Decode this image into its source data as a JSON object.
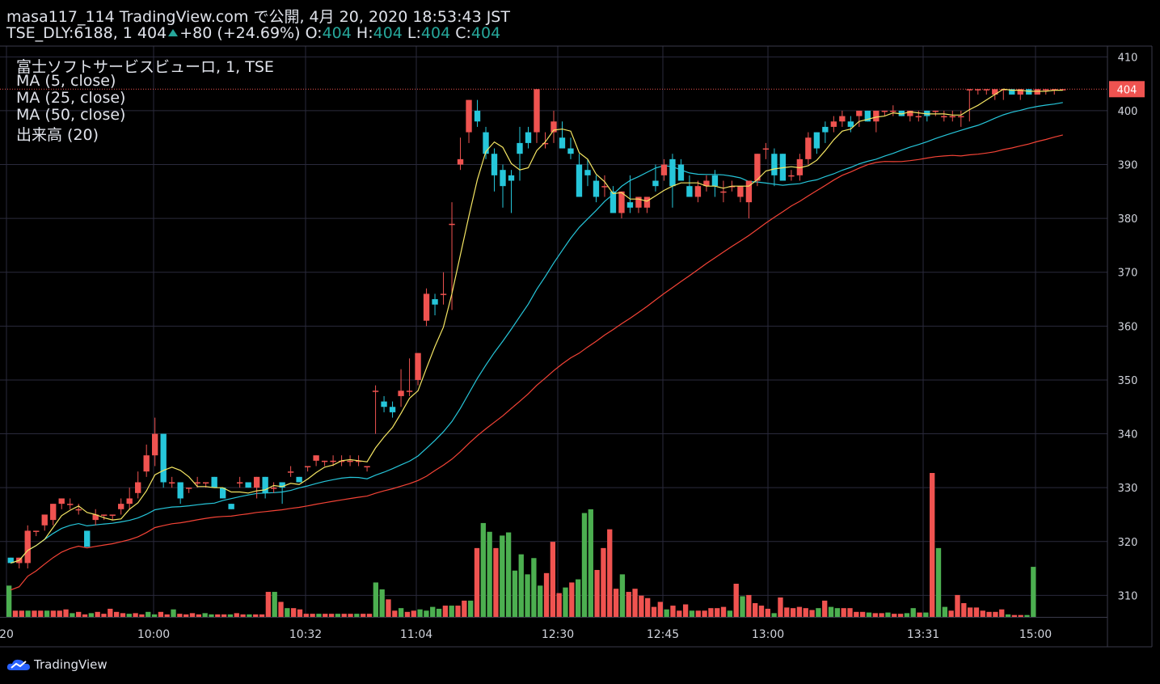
{
  "header": {
    "published": "masa117_114 TradingView.com で公開, 4月 20, 2020 18:53:43 JST",
    "symbol": "TSE_DLY:6188, 1",
    "price": "404",
    "change": "+80 (+24.69%)",
    "o_label": "O:",
    "o_value": "404",
    "h_label": "H:",
    "h_value": "404",
    "l_label": "L:",
    "l_value": "404",
    "c_label": "C:",
    "c_value": "404"
  },
  "legend": {
    "title": "富士ソフトサービスビューロ, 1, TSE",
    "ma5": "MA (5, close)",
    "ma25": "MA (25, close)",
    "ma50": "MA (50, close)",
    "volume": "出来高 (20)"
  },
  "footer": {
    "brand": "TradingView"
  },
  "colors": {
    "up": "#ef5350",
    "down": "#26c6da",
    "vol_up": "#ef5350",
    "vol_down": "#4caf50",
    "ma5": "#f5e663",
    "ma25": "#26c6da",
    "ma50": "#f44336",
    "grid": "#2a2a3c",
    "price_line": "#ef5350"
  },
  "chart_data": {
    "type": "candlestick",
    "ylim": [
      306,
      412
    ],
    "y_ticks": [
      310,
      320,
      330,
      340,
      350,
      360,
      370,
      380,
      390,
      400,
      410
    ],
    "last_price_label": "404",
    "x_tick_labels": [
      "20",
      "10:00",
      "10:32",
      "11:04",
      "12:30",
      "12:45",
      "13:00",
      "13:31",
      "15:00"
    ],
    "x_tick_bars": [
      0,
      16,
      29,
      42,
      56,
      67,
      77,
      95,
      106
    ],
    "candles": [
      {
        "o": 317,
        "h": 317,
        "l": 316,
        "c": 316
      },
      {
        "o": 316,
        "h": 317,
        "l": 315,
        "c": 317
      },
      {
        "o": 316,
        "h": 323,
        "l": 315,
        "c": 322
      },
      {
        "o": 322,
        "h": 322,
        "l": 321,
        "c": 322
      },
      {
        "o": 323,
        "h": 325,
        "l": 322,
        "c": 325
      },
      {
        "o": 324,
        "h": 327,
        "l": 323,
        "c": 327
      },
      {
        "o": 327,
        "h": 328,
        "l": 326,
        "c": 328
      },
      {
        "o": 327,
        "h": 328,
        "l": 326,
        "c": 327
      },
      {
        "o": 326,
        "h": 327,
        "l": 325,
        "c": 326
      },
      {
        "o": 322,
        "h": 322,
        "l": 319,
        "c": 319
      },
      {
        "o": 324,
        "h": 326,
        "l": 323,
        "c": 325
      },
      {
        "o": 325,
        "h": 325,
        "l": 324,
        "c": 325
      },
      {
        "o": 325,
        "h": 325,
        "l": 324,
        "c": 325
      },
      {
        "o": 326,
        "h": 328,
        "l": 325,
        "c": 327
      },
      {
        "o": 327,
        "h": 330,
        "l": 326,
        "c": 328
      },
      {
        "o": 329,
        "h": 333,
        "l": 328,
        "c": 331
      },
      {
        "o": 333,
        "h": 338,
        "l": 332,
        "c": 336
      },
      {
        "o": 336,
        "h": 343,
        "l": 334,
        "c": 340
      },
      {
        "o": 340,
        "h": 340,
        "l": 330,
        "c": 331
      },
      {
        "o": 331,
        "h": 332,
        "l": 330,
        "c": 331
      },
      {
        "o": 331,
        "h": 331,
        "l": 327,
        "c": 328
      },
      {
        "o": 330,
        "h": 330,
        "l": 329,
        "c": 330
      },
      {
        "o": 331,
        "h": 332,
        "l": 330,
        "c": 331
      },
      {
        "o": 331,
        "h": 331,
        "l": 330,
        "c": 331
      },
      {
        "o": 332,
        "h": 332,
        "l": 330,
        "c": 330
      },
      {
        "o": 330,
        "h": 330,
        "l": 328,
        "c": 328
      },
      {
        "o": 327,
        "h": 327,
        "l": 326,
        "c": 326
      },
      {
        "o": 331,
        "h": 332,
        "l": 330,
        "c": 331
      },
      {
        "o": 331,
        "h": 331,
        "l": 330,
        "c": 330
      },
      {
        "o": 330,
        "h": 332,
        "l": 328,
        "c": 332
      },
      {
        "o": 332,
        "h": 332,
        "l": 328,
        "c": 329
      },
      {
        "o": 330,
        "h": 331,
        "l": 329,
        "c": 330
      },
      {
        "o": 331,
        "h": 331,
        "l": 327,
        "c": 330
      },
      {
        "o": 333,
        "h": 334,
        "l": 332,
        "c": 333
      },
      {
        "o": 332,
        "h": 332,
        "l": 331,
        "c": 331
      },
      {
        "o": 334,
        "h": 334,
        "l": 333,
        "c": 334
      },
      {
        "o": 335,
        "h": 336,
        "l": 334,
        "c": 336
      },
      {
        "o": 335,
        "h": 335,
        "l": 334,
        "c": 335
      },
      {
        "o": 335,
        "h": 336,
        "l": 334,
        "c": 335
      },
      {
        "o": 335,
        "h": 336,
        "l": 334,
        "c": 335
      },
      {
        "o": 335,
        "h": 336,
        "l": 334,
        "c": 335
      },
      {
        "o": 335,
        "h": 336,
        "l": 334,
        "c": 335
      },
      {
        "o": 334,
        "h": 334,
        "l": 333,
        "c": 334
      },
      {
        "o": 348,
        "h": 349,
        "l": 340,
        "c": 348
      },
      {
        "o": 346,
        "h": 347,
        "l": 344,
        "c": 345
      },
      {
        "o": 345,
        "h": 346,
        "l": 343,
        "c": 344
      },
      {
        "o": 347,
        "h": 352,
        "l": 345,
        "c": 348
      },
      {
        "o": 348,
        "h": 354,
        "l": 347,
        "c": 348
      },
      {
        "o": 350,
        "h": 355,
        "l": 349,
        "c": 355
      },
      {
        "o": 361,
        "h": 367,
        "l": 360,
        "c": 366
      },
      {
        "o": 365,
        "h": 366,
        "l": 362,
        "c": 364
      },
      {
        "o": 366,
        "h": 370,
        "l": 364,
        "c": 366
      },
      {
        "o": 379,
        "h": 383,
        "l": 363,
        "c": 379
      },
      {
        "o": 390,
        "h": 395,
        "l": 389,
        "c": 391
      },
      {
        "o": 396,
        "h": 402,
        "l": 394,
        "c": 402
      },
      {
        "o": 400,
        "h": 402,
        "l": 397,
        "c": 398
      },
      {
        "o": 396,
        "h": 397,
        "l": 391,
        "c": 392
      },
      {
        "o": 392,
        "h": 393,
        "l": 385,
        "c": 388
      },
      {
        "o": 389,
        "h": 390,
        "l": 382,
        "c": 386
      },
      {
        "o": 388,
        "h": 389,
        "l": 381,
        "c": 387
      },
      {
        "o": 394,
        "h": 397,
        "l": 387,
        "c": 392
      },
      {
        "o": 396,
        "h": 397,
        "l": 393,
        "c": 394
      },
      {
        "o": 396,
        "h": 404,
        "l": 394,
        "c": 404
      },
      {
        "o": 394,
        "h": 396,
        "l": 393,
        "c": 394
      },
      {
        "o": 396,
        "h": 400,
        "l": 394,
        "c": 398
      },
      {
        "o": 395,
        "h": 398,
        "l": 393,
        "c": 393
      },
      {
        "o": 393,
        "h": 395,
        "l": 391,
        "c": 392
      },
      {
        "o": 390,
        "h": 392,
        "l": 384,
        "c": 384
      },
      {
        "o": 389,
        "h": 391,
        "l": 386,
        "c": 388
      },
      {
        "o": 387,
        "h": 388,
        "l": 383,
        "c": 384
      },
      {
        "o": 386,
        "h": 388,
        "l": 384,
        "c": 386
      }
    ],
    "candles_right": [
      {
        "o": 385,
        "h": 386,
        "l": 381,
        "c": 381
      },
      {
        "o": 381,
        "h": 385,
        "l": 380,
        "c": 385
      },
      {
        "o": 383,
        "h": 388,
        "l": 381,
        "c": 382
      },
      {
        "o": 382,
        "h": 384,
        "l": 381,
        "c": 384
      },
      {
        "o": 382,
        "h": 384,
        "l": 381,
        "c": 384
      },
      {
        "o": 387,
        "h": 390,
        "l": 385,
        "c": 386
      },
      {
        "o": 388,
        "h": 391,
        "l": 387,
        "c": 390
      },
      {
        "o": 391,
        "h": 392,
        "l": 382,
        "c": 386
      },
      {
        "o": 390,
        "h": 391,
        "l": 387,
        "c": 387
      },
      {
        "o": 386,
        "h": 388,
        "l": 384,
        "c": 384
      },
      {
        "o": 384,
        "h": 387,
        "l": 383,
        "c": 386
      },
      {
        "o": 386,
        "h": 388,
        "l": 385,
        "c": 387
      },
      {
        "o": 388,
        "h": 389,
        "l": 384,
        "c": 386
      },
      {
        "o": 385,
        "h": 387,
        "l": 383,
        "c": 385
      },
      {
        "o": 386,
        "h": 387,
        "l": 385,
        "c": 386
      },
      {
        "o": 384,
        "h": 386,
        "l": 383,
        "c": 386
      },
      {
        "o": 383,
        "h": 387,
        "l": 380,
        "c": 387
      },
      {
        "o": 387,
        "h": 392,
        "l": 386,
        "c": 392
      },
      {
        "o": 393,
        "h": 394,
        "l": 391,
        "c": 393
      },
      {
        "o": 392,
        "h": 393,
        "l": 386,
        "c": 388
      },
      {
        "o": 392,
        "h": 392,
        "l": 387,
        "c": 387
      },
      {
        "o": 388,
        "h": 389,
        "l": 387,
        "c": 388
      },
      {
        "o": 388,
        "h": 392,
        "l": 387,
        "c": 391
      },
      {
        "o": 391,
        "h": 396,
        "l": 390,
        "c": 395
      },
      {
        "o": 396,
        "h": 396,
        "l": 392,
        "c": 393
      },
      {
        "o": 397,
        "h": 398,
        "l": 394,
        "c": 396
      },
      {
        "o": 397,
        "h": 399,
        "l": 396,
        "c": 398
      },
      {
        "o": 398,
        "h": 400,
        "l": 397,
        "c": 399
      },
      {
        "o": 398,
        "h": 399,
        "l": 396,
        "c": 397
      },
      {
        "o": 399,
        "h": 400,
        "l": 397,
        "c": 400
      },
      {
        "o": 400,
        "h": 400,
        "l": 398,
        "c": 398
      },
      {
        "o": 398,
        "h": 400,
        "l": 396,
        "c": 400
      },
      {
        "o": 400,
        "h": 400,
        "l": 399,
        "c": 400
      },
      {
        "o": 400,
        "h": 401,
        "l": 399,
        "c": 400
      },
      {
        "o": 400,
        "h": 400,
        "l": 399,
        "c": 399
      },
      {
        "o": 399,
        "h": 400,
        "l": 398,
        "c": 400
      },
      {
        "o": 399,
        "h": 400,
        "l": 398,
        "c": 399
      },
      {
        "o": 400,
        "h": 400,
        "l": 398,
        "c": 399
      },
      {
        "o": 400,
        "h": 400,
        "l": 399,
        "c": 400
      },
      {
        "o": 399,
        "h": 400,
        "l": 398,
        "c": 399
      },
      {
        "o": 399,
        "h": 400,
        "l": 398,
        "c": 399
      },
      {
        "o": 399,
        "h": 400,
        "l": 397,
        "c": 399
      },
      {
        "o": 404,
        "h": 404,
        "l": 398,
        "c": 404
      },
      {
        "o": 404,
        "h": 404,
        "l": 403,
        "c": 404
      },
      {
        "o": 404,
        "h": 404,
        "l": 403,
        "c": 404
      },
      {
        "o": 403,
        "h": 404,
        "l": 402,
        "c": 404
      },
      {
        "o": 404,
        "h": 404,
        "l": 402,
        "c": 404
      },
      {
        "o": 404,
        "h": 404,
        "l": 403,
        "c": 403
      },
      {
        "o": 403,
        "h": 404,
        "l": 402,
        "c": 404
      },
      {
        "o": 404,
        "h": 404,
        "l": 403,
        "c": 403
      },
      {
        "o": 403,
        "h": 404,
        "l": 403,
        "c": 404
      },
      {
        "o": 404,
        "h": 404,
        "l": 403,
        "c": 404
      },
      {
        "o": 404,
        "h": 404,
        "l": 403,
        "c": 404
      },
      {
        "o": 404,
        "h": 404,
        "l": 404,
        "c": 404
      }
    ],
    "volumes": [
      5,
      1,
      1,
      1,
      1,
      1,
      1,
      1,
      1,
      1.2,
      0.6,
      0.8,
      0.4,
      0.6,
      0.8,
      0.5,
      1.3,
      0.8,
      0.6,
      0.5,
      0.6,
      0.4,
      0.8,
      0.4,
      0.8,
      0.4,
      1.2,
      0.5,
      0.4,
      0.6,
      0.4,
      0.6,
      0.4,
      0.4,
      0.4,
      0.4,
      0.6,
      0.4,
      0.4,
      0.4,
      0.4,
      4,
      4,
      2.4,
      1.4,
      1.4,
      1.2,
      0.5,
      0.5,
      0.5,
      0.5,
      0.5,
      0.5,
      0.5,
      0.5,
      0.5,
      0.5,
      0.5,
      5.5,
      4.4,
      2.8,
      1,
      1.4,
      0.8,
      1,
      1.2,
      1,
      1.6,
      1.3,
      1.8,
      1.8,
      1.8,
      2.6,
      2.6,
      11,
      15,
      13.6,
      11,
      13,
      13.5,
      7.4,
      10,
      6.8,
      9.4,
      5,
      7,
      12,
      3.8,
      4.7,
      5.5,
      6,
      16.6,
      17.2,
      7.5,
      11,
      14,
      4.5,
      6.8,
      4,
      4.5,
      3.4,
      3,
      1.6,
      2.4,
      1.2,
      1.8,
      1,
      2,
      1,
      1,
      1,
      1.4,
      1.4,
      1.6,
      1,
      5.3,
      3.3,
      3.5,
      2.2,
      1.8,
      1.3,
      0.6,
      3.1,
      1.5,
      1.4,
      1.6,
      1.4,
      1.1,
      1.4,
      2.6,
      1.6,
      1.4,
      1.4,
      1.4,
      0.8,
      0.8,
      0.7,
      0.6,
      0.6,
      0.7,
      0.5,
      0.5,
      0.6,
      1.4,
      0.7,
      0.7,
      23,
      11,
      1.6,
      1,
      3.5,
      2.2,
      1.5,
      1.5,
      1.0,
      0.8,
      0.8,
      1.2,
      0.4,
      0.3,
      0.3,
      0.3,
      8.0
    ]
  }
}
